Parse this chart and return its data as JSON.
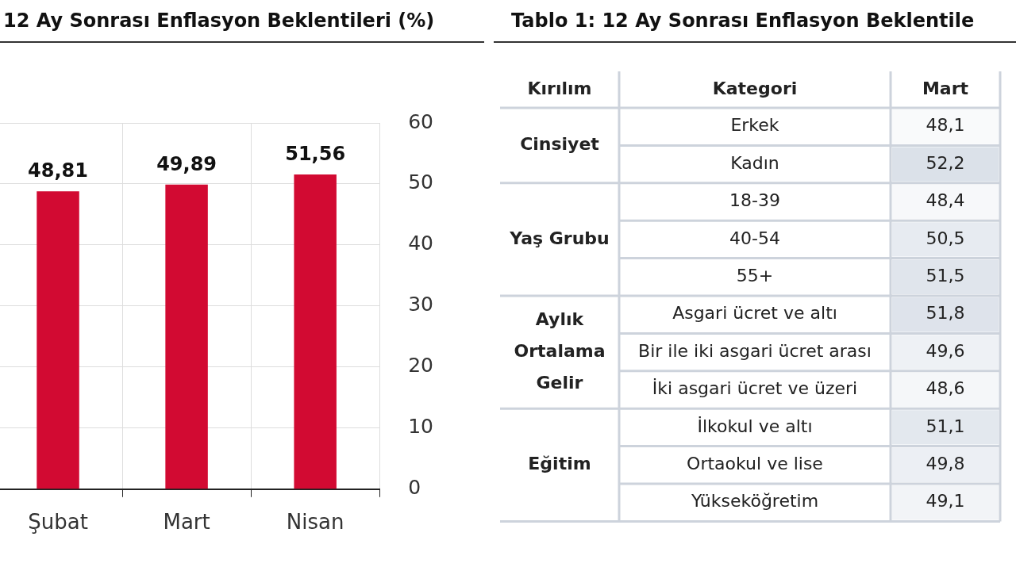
{
  "chart_data": [
    {
      "type": "bar",
      "title": "12 Ay Sonrası Enflasyon Beklentileri (%)",
      "categories": [
        "Şubat",
        "Mart",
        "Nisan"
      ],
      "values": [
        48.81,
        49.89,
        51.56
      ],
      "value_labels": [
        "48,81",
        "49,89",
        "51,56"
      ],
      "color": "#d20a32",
      "ylim": [
        0,
        60
      ],
      "yticks": [
        0,
        10,
        20,
        30,
        40,
        50,
        60
      ],
      "grid": true,
      "legend": false
    },
    {
      "type": "heatmap",
      "title": "Tablo 1: 12 Ay Sonrası Enflasyon Beklentile",
      "y2label": "Kırılım",
      "ylabel": "Kategori",
      "categories": [
        "Mart"
      ],
      "y_categories": [
        "Erkek",
        "Kadın",
        "18-39",
        "40-54",
        "55+",
        "Asgari ücret ve altı",
        "Bir ile iki asgari ücret arası",
        "İki asgari ücret ve üzeri",
        "İlkokul ve altı",
        "Ortaokul ve lise",
        "Yükseköğretim"
      ],
      "y2_categories": [
        "Cinsiyet",
        null,
        null,
        "Yaş Grubu",
        null,
        null,
        "Aylık Ortalama Gelir",
        null,
        null,
        "Eğitim",
        null
      ],
      "cells": [
        [
          48.1
        ],
        [
          52.2
        ],
        [
          48.4
        ],
        [
          50.5
        ],
        [
          51.5
        ],
        [
          51.8
        ],
        [
          49.6
        ],
        [
          48.6
        ],
        [
          51.1
        ],
        [
          49.8
        ],
        [
          49.1
        ]
      ],
      "cell_labels": [
        [
          "48,1"
        ],
        [
          "52,2"
        ],
        [
          "48,4"
        ],
        [
          "50,5"
        ],
        [
          "51,5"
        ],
        [
          "51,8"
        ],
        [
          "49,6"
        ],
        [
          "48,6"
        ],
        [
          "51,1"
        ],
        [
          "49,8"
        ],
        [
          "49,1"
        ]
      ]
    }
  ]
}
